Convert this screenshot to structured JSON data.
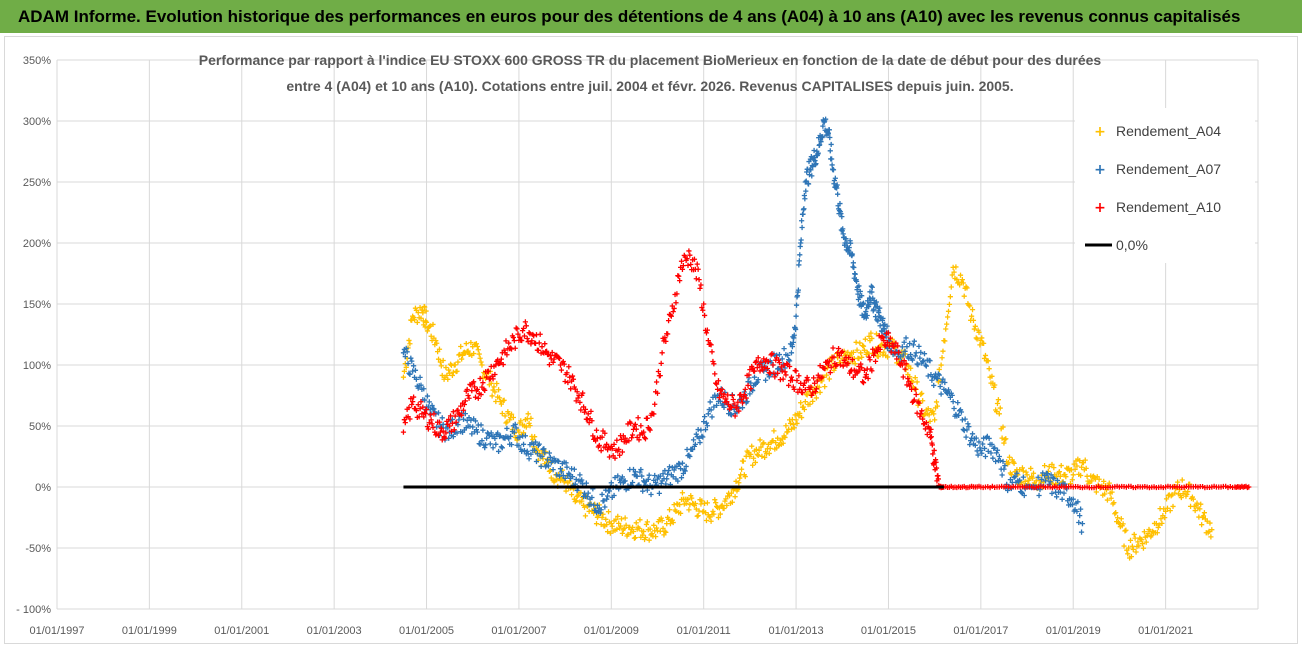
{
  "banner": {
    "title": "ADAM Informe. Evolution historique des performances en euros pour des détentions de 4 ans (A04) à 10 ans (A10) avec les revenus connus capitalisés"
  },
  "colors": {
    "banner_bg": "#70ad47",
    "a04": "#ffc000",
    "a07": "#2e75b6",
    "a10": "#ff0000",
    "zero": "#000000",
    "grid": "#d9d9d9"
  },
  "chart_data": {
    "type": "scatter",
    "title_lines": [
      "Performance par rapport à l'indice EU STOXX 600 GROSS TR  du placement BioMerieux en fonction de la date de début pour des durées",
      "entre 4 (A04) et 10 ans (A10). Cotations entre juil. 2004 et févr. 2026. Revenus CAPITALISES depuis juin. 2005."
    ],
    "xlim": [
      1997.0,
      2023.0
    ],
    "ylim": [
      -100,
      350
    ],
    "x_ticks": [
      1997,
      1999,
      2001,
      2003,
      2005,
      2007,
      2009,
      2011,
      2013,
      2015,
      2017,
      2019,
      2021
    ],
    "x_tick_labels": [
      "01/01/1997",
      "01/01/1999",
      "01/01/2001",
      "01/01/2003",
      "01/01/2005",
      "01/01/2007",
      "01/01/2009",
      "01/01/2011",
      "01/01/2013",
      "01/01/2015",
      "01/01/2017",
      "01/01/2019",
      "01/01/2021"
    ],
    "y_ticks": [
      -100,
      -50,
      0,
      50,
      100,
      150,
      200,
      250,
      300,
      350
    ],
    "y_tick_labels": [
      "- 100%",
      "-50%",
      "0%",
      "50%",
      "100%",
      "150%",
      "200%",
      "250%",
      "300%",
      "350%"
    ],
    "legend": {
      "placement": "top-right",
      "entries": [
        "Rendement_A04",
        "Rendement_A07",
        "Rendement_A10",
        "0,0%"
      ]
    },
    "series": [
      {
        "name": "Rendement_A04",
        "color": "#ffc000",
        "x": [
          2004.5,
          2004.7,
          2004.9,
          2005.0,
          2005.2,
          2005.4,
          2005.6,
          2005.8,
          2006.0,
          2006.2,
          2006.4,
          2006.6,
          2006.8,
          2007.0,
          2007.2,
          2007.4,
          2007.6,
          2007.8,
          2008.0,
          2008.2,
          2008.4,
          2008.6,
          2008.8,
          2009.0,
          2009.2,
          2009.4,
          2009.6,
          2009.8,
          2010.0,
          2010.2,
          2010.4,
          2010.6,
          2010.8,
          2011.0,
          2011.2,
          2011.4,
          2011.6,
          2011.8,
          2012.0,
          2012.2,
          2012.4,
          2012.6,
          2012.8,
          2013.0,
          2013.2,
          2013.4,
          2013.6,
          2013.8,
          2014.0,
          2014.2,
          2014.4,
          2014.6,
          2014.8,
          2015.0,
          2015.2,
          2015.4,
          2015.6,
          2015.8,
          2016.0,
          2016.2,
          2016.4,
          2016.6,
          2016.8,
          2017.0,
          2017.2,
          2017.4,
          2017.6,
          2017.8,
          2018.0,
          2018.2,
          2018.4,
          2018.6,
          2018.8,
          2019.0,
          2019.2,
          2019.4,
          2019.6,
          2019.8,
          2020.0,
          2020.2,
          2020.4,
          2020.6,
          2020.8,
          2021.0,
          2021.2,
          2021.4,
          2021.6,
          2021.8,
          2022.0
        ],
        "y": [
          90,
          140,
          145,
          135,
          120,
          90,
          100,
          110,
          115,
          100,
          85,
          70,
          55,
          45,
          60,
          30,
          20,
          10,
          5,
          -10,
          -15,
          -20,
          -25,
          -30,
          -32,
          -33,
          -34,
          -35,
          -36,
          -30,
          -20,
          -10,
          -15,
          -20,
          -20,
          -15,
          -5,
          10,
          25,
          30,
          35,
          40,
          45,
          55,
          70,
          80,
          90,
          100,
          105,
          110,
          110,
          120,
          115,
          115,
          110,
          100,
          80,
          60,
          55,
          120,
          180,
          170,
          140,
          120,
          90,
          60,
          20,
          10,
          10,
          5,
          10,
          10,
          10,
          10,
          20,
          5,
          0,
          -5,
          -30,
          -50,
          -45,
          -40,
          -30,
          -20,
          -5,
          0,
          -10,
          -25,
          -35
        ]
      },
      {
        "name": "Rendement_A07",
        "color": "#2e75b6",
        "x": [
          2004.5,
          2004.7,
          2004.9,
          2005.1,
          2005.3,
          2005.5,
          2005.7,
          2005.9,
          2006.1,
          2006.3,
          2006.5,
          2006.7,
          2006.9,
          2007.1,
          2007.3,
          2007.5,
          2007.7,
          2007.9,
          2008.1,
          2008.3,
          2008.5,
          2008.7,
          2008.9,
          2009.1,
          2009.3,
          2009.5,
          2009.7,
          2009.9,
          2010.1,
          2010.3,
          2010.5,
          2010.7,
          2010.9,
          2011.1,
          2011.3,
          2011.5,
          2011.7,
          2011.9,
          2012.1,
          2012.3,
          2012.5,
          2012.7,
          2012.9,
          2013.0,
          2013.1,
          2013.2,
          2013.3,
          2013.4,
          2013.5,
          2013.6,
          2013.7,
          2013.8,
          2013.9,
          2014.0,
          2014.1,
          2014.2,
          2014.3,
          2014.4,
          2014.5,
          2014.6,
          2014.7,
          2014.8,
          2014.9,
          2015.0,
          2015.2,
          2015.4,
          2015.6,
          2015.8,
          2016.0,
          2016.2,
          2016.4,
          2016.6,
          2016.8,
          2017.0,
          2017.2,
          2017.4,
          2017.6,
          2017.8,
          2018.0,
          2018.2,
          2018.4,
          2018.6,
          2018.8,
          2019.0,
          2019.2
        ],
        "y": [
          110,
          95,
          80,
          60,
          50,
          45,
          55,
          50,
          45,
          40,
          35,
          40,
          45,
          35,
          30,
          25,
          20,
          15,
          10,
          5,
          -5,
          -15,
          -10,
          0,
          5,
          10,
          5,
          0,
          5,
          10,
          15,
          25,
          40,
          60,
          75,
          70,
          65,
          75,
          90,
          95,
          100,
          105,
          110,
          140,
          200,
          250,
          260,
          270,
          280,
          300,
          290,
          260,
          240,
          210,
          200,
          190,
          170,
          150,
          140,
          160,
          150,
          140,
          130,
          120,
          110,
          115,
          110,
          100,
          90,
          80,
          70,
          55,
          40,
          30,
          35,
          25,
          0,
          5,
          0,
          0,
          5,
          0,
          -5,
          -10,
          -30
        ]
      },
      {
        "name": "Rendement_A10",
        "color": "#ff0000",
        "x": [
          2004.5,
          2004.7,
          2004.9,
          2005.1,
          2005.3,
          2005.5,
          2005.7,
          2005.9,
          2006.1,
          2006.3,
          2006.5,
          2006.7,
          2006.9,
          2007.1,
          2007.3,
          2007.5,
          2007.7,
          2007.9,
          2008.1,
          2008.3,
          2008.5,
          2008.7,
          2008.9,
          2009.1,
          2009.3,
          2009.5,
          2009.7,
          2009.9,
          2010.1,
          2010.3,
          2010.5,
          2010.7,
          2010.9,
          2011.1,
          2011.3,
          2011.5,
          2011.7,
          2011.9,
          2012.1,
          2012.3,
          2012.5,
          2012.7,
          2012.9,
          2013.1,
          2013.3,
          2013.5,
          2013.7,
          2013.9,
          2014.1,
          2014.3,
          2014.5,
          2014.7,
          2014.9,
          2015.1,
          2015.3,
          2015.5,
          2015.7,
          2015.9,
          2016.0,
          2016.1,
          2016.2,
          2016.6,
          2017.0,
          2017.5,
          2018.0,
          2018.5,
          2019.0,
          2019.5,
          2020.0,
          2020.5,
          2021.0,
          2021.5,
          2022.0,
          2022.5,
          2022.8
        ],
        "y": [
          45,
          70,
          60,
          55,
          45,
          50,
          60,
          75,
          80,
          90,
          100,
          110,
          120,
          130,
          125,
          115,
          105,
          100,
          90,
          75,
          60,
          40,
          35,
          30,
          40,
          50,
          45,
          60,
          110,
          140,
          180,
          190,
          170,
          120,
          80,
          70,
          65,
          80,
          95,
          105,
          100,
          95,
          90,
          85,
          80,
          90,
          100,
          110,
          100,
          95,
          90,
          110,
          120,
          115,
          100,
          80,
          60,
          45,
          20,
          0,
          0,
          0,
          0,
          0,
          0,
          0,
          0,
          0,
          0,
          0,
          0,
          0,
          0,
          0,
          0
        ]
      },
      {
        "name": "0,0%",
        "color": "#000000",
        "x": [
          2004.5,
          2016.2
        ],
        "y": [
          0,
          0
        ]
      }
    ]
  }
}
